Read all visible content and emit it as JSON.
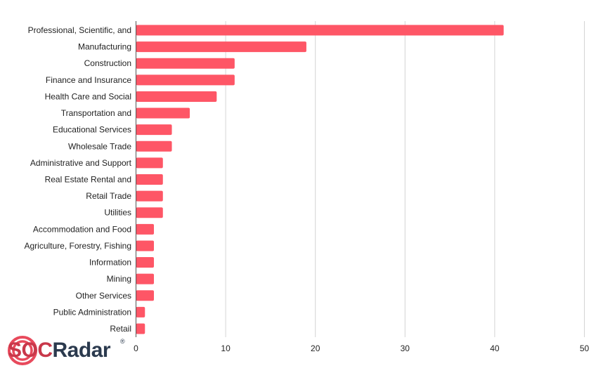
{
  "chart_data": {
    "type": "bar",
    "orientation": "horizontal",
    "categories": [
      "Professional, Scientific, and",
      "Manufacturing",
      "Construction",
      "Finance and Insurance",
      "Health Care and Social",
      "Transportation and",
      "Educational Services",
      "Wholesale Trade",
      "Administrative and Support",
      "Real Estate Rental and",
      "Retail Trade",
      "Utilities",
      "Accommodation and Food",
      "Agriculture, Forestry, Fishing",
      "Information",
      "Mining",
      "Other Services",
      "Public Administration",
      "Retail"
    ],
    "values": [
      41,
      19,
      11,
      11,
      9,
      6,
      4,
      4,
      3,
      3,
      3,
      3,
      2,
      2,
      2,
      2,
      2,
      1,
      1
    ],
    "xlim": [
      0,
      50
    ],
    "xticks": [
      0,
      10,
      20,
      30,
      40,
      50
    ],
    "grid": true,
    "bar_color": "#fe5666"
  },
  "logo": {
    "text_soc": "SOC",
    "text_radar": "Radar",
    "registered": "®",
    "color_soc": "#c8384a",
    "color_radar": "#2b3a4e",
    "icon_name": "radar-signal-icon"
  }
}
